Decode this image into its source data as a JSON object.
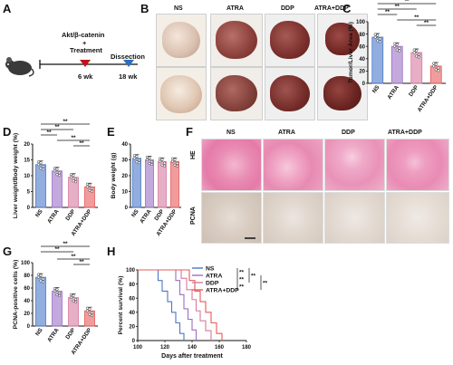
{
  "panels": [
    "A",
    "B",
    "C",
    "D",
    "E",
    "F",
    "G",
    "H"
  ],
  "panelA": {
    "model_line1": "Akt/β-catenin",
    "model_line2": "+",
    "treatment": "Treatment",
    "dissection": "Dissection",
    "t1": "6 wk",
    "t2": "18 wk",
    "treatment_color": "#c0141d",
    "dissection_color": "#2a6fc2"
  },
  "groups": [
    "NS",
    "ATRA",
    "DDP",
    "ATRA+DDP"
  ],
  "group_colors": [
    "#4a78c8",
    "#9b6fc4",
    "#d67a9e",
    "#e85a5a"
  ],
  "panelF": {
    "row1": "HE",
    "row2": "PCNA"
  },
  "charts": [
    {
      "id": "C",
      "chart_data": {
        "type": "bar",
        "categories": [
          "NS",
          "ATRA",
          "DDP",
          "ATRA+DDP"
        ],
        "values": [
          75,
          60,
          50,
          28
        ],
        "ylabel": "Tumor/Liver Area (%)",
        "ylim": [
          0,
          100
        ],
        "yticks": [
          0,
          20,
          40,
          60,
          80,
          100
        ],
        "significance": [
          "**",
          "**",
          "**",
          "**",
          "**"
        ]
      }
    },
    {
      "id": "D",
      "chart_data": {
        "type": "bar",
        "categories": [
          "NS",
          "ATRA",
          "DDP",
          "ATRA+DDP"
        ],
        "values": [
          13.5,
          11.5,
          9.5,
          6.5
        ],
        "ylabel": "Liver weight/Body weight (%)",
        "ylim": [
          0,
          20
        ],
        "yticks": [
          0,
          5,
          10,
          15,
          20
        ],
        "significance": [
          "**",
          "**",
          "**",
          "**",
          "**"
        ]
      }
    },
    {
      "id": "E",
      "chart_data": {
        "type": "bar",
        "categories": [
          "NS",
          "ATRA",
          "DDP",
          "ATRA+DDP"
        ],
        "values": [
          31,
          30,
          29,
          29
        ],
        "ylabel": "Body weight (g)",
        "ylim": [
          0,
          40
        ],
        "yticks": [
          0,
          10,
          20,
          30,
          40
        ],
        "significance": []
      }
    },
    {
      "id": "G",
      "chart_data": {
        "type": "bar",
        "categories": [
          "NS",
          "ATRA",
          "DDP",
          "ATRA+DDP"
        ],
        "values": [
          77,
          55,
          45,
          24
        ],
        "ylabel": "PCNA-positive cells (%)",
        "ylim": [
          0,
          100
        ],
        "yticks": [
          0,
          20,
          40,
          60,
          80,
          100
        ],
        "significance": [
          "**",
          "**",
          "**",
          "**"
        ]
      }
    }
  ],
  "survival": {
    "chart_data": {
      "type": "line",
      "xlabel": "Days after treatment",
      "ylabel": "Percent survival (%)",
      "xlim": [
        100,
        180
      ],
      "ylim": [
        0,
        100
      ],
      "xticks": [
        100,
        120,
        140,
        160,
        180
      ],
      "yticks": [
        0,
        20,
        40,
        60,
        80,
        100
      ],
      "series": [
        {
          "name": "NS",
          "x": [
            100,
            115,
            115,
            118,
            118,
            122,
            122,
            125,
            125,
            128,
            128,
            131,
            131,
            134,
            134
          ],
          "y": [
            100,
            100,
            85,
            85,
            70,
            70,
            55,
            55,
            40,
            40,
            25,
            25,
            10,
            10,
            0
          ]
        },
        {
          "name": "ATRA",
          "x": [
            100,
            128,
            128,
            131,
            131,
            134,
            134,
            137,
            137,
            140,
            140,
            143,
            143
          ],
          "y": [
            100,
            100,
            85,
            85,
            65,
            65,
            45,
            45,
            30,
            30,
            15,
            15,
            0
          ]
        },
        {
          "name": "DDP",
          "x": [
            100,
            132,
            132,
            136,
            136,
            140,
            140,
            143,
            143,
            146,
            146,
            150,
            150,
            154,
            154
          ],
          "y": [
            100,
            100,
            88,
            88,
            72,
            72,
            58,
            58,
            42,
            42,
            28,
            28,
            14,
            14,
            0
          ]
        },
        {
          "name": "ATRA+DDP",
          "x": [
            100,
            138,
            138,
            142,
            142,
            146,
            146,
            150,
            150,
            154,
            154,
            158,
            158,
            162,
            162
          ],
          "y": [
            100,
            100,
            85,
            85,
            70,
            70,
            55,
            55,
            40,
            40,
            25,
            25,
            10,
            10,
            0
          ]
        }
      ],
      "significance": [
        "**",
        "**",
        "**",
        "**",
        "**"
      ]
    }
  }
}
